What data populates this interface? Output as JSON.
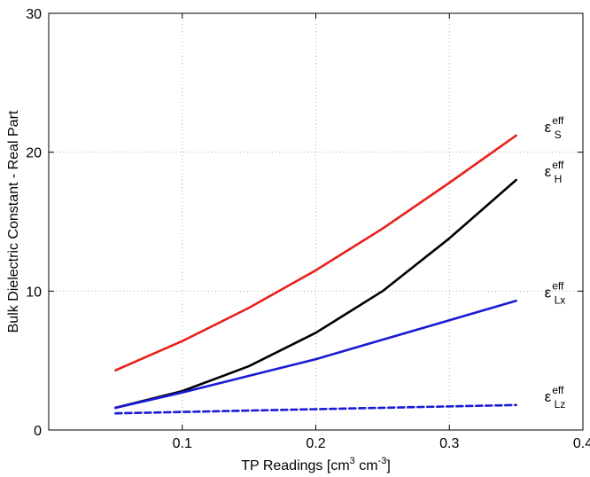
{
  "chart_data": {
    "type": "line",
    "title": "",
    "xlabel": {
      "main": "TP Readings [cm",
      "sup1": "3",
      "mid": " cm",
      "sup2": "-3",
      "end": "]"
    },
    "ylabel": "Bulk Dielectric Constant - Real Part",
    "xlim": [
      0,
      0.4
    ],
    "ylim": [
      0,
      30
    ],
    "xticks": [
      0.1,
      0.2,
      0.3,
      0.4
    ],
    "xtick_labels": [
      "0.1",
      "0.2",
      "0.3",
      "0.4"
    ],
    "yticks": [
      0,
      10,
      20,
      30
    ],
    "ytick_labels": [
      "0",
      "10",
      "20",
      "30"
    ],
    "grid": true,
    "legend": "none",
    "series": [
      {
        "name_base": "ε",
        "name_sup": "eff",
        "name_sub": "S",
        "color": "#e8201a",
        "dash": "solid",
        "x": [
          0.05,
          0.1,
          0.15,
          0.2,
          0.25,
          0.3,
          0.35
        ],
        "y": [
          4.3,
          6.4,
          8.8,
          11.5,
          14.5,
          17.8,
          21.2
        ]
      },
      {
        "name_base": "ε",
        "name_sup": "eff",
        "name_sub": "H",
        "color": "#000000",
        "dash": "solid",
        "x": [
          0.05,
          0.1,
          0.15,
          0.2,
          0.25,
          0.3,
          0.35
        ],
        "y": [
          1.6,
          2.8,
          4.6,
          7.0,
          10.0,
          13.8,
          18.0
        ]
      },
      {
        "name_base": "ε",
        "name_sup": "eff",
        "name_sub": "Lx",
        "color": "#1a1ad6",
        "dash": "solid",
        "x": [
          0.05,
          0.1,
          0.15,
          0.2,
          0.25,
          0.3,
          0.35
        ],
        "y": [
          1.6,
          2.7,
          3.9,
          5.1,
          6.5,
          7.9,
          9.3
        ]
      },
      {
        "name_base": "ε",
        "name_sup": "eff",
        "name_sub": "Lz",
        "color": "#1a1ad6",
        "dash": "dashed",
        "x": [
          0.05,
          0.1,
          0.15,
          0.2,
          0.25,
          0.3,
          0.35
        ],
        "y": [
          1.2,
          1.3,
          1.4,
          1.5,
          1.6,
          1.7,
          1.8
        ]
      }
    ]
  }
}
